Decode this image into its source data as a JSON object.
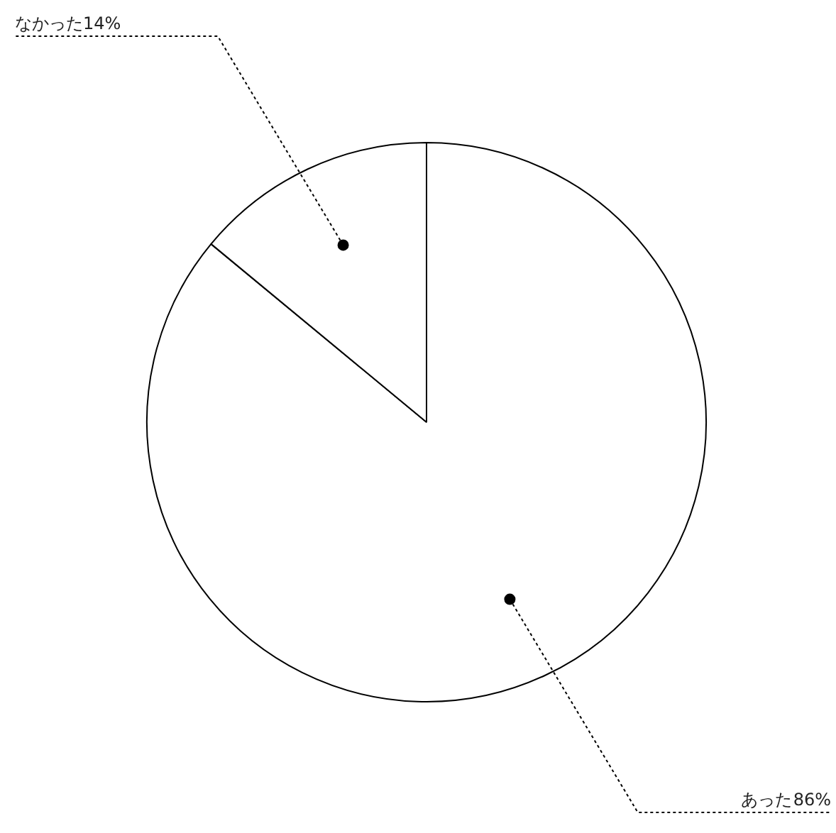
{
  "chart_data": {
    "type": "pie",
    "categories": [
      "あった",
      "なかった"
    ],
    "values": [
      86,
      14
    ],
    "colors": [
      "#ffffff",
      "#ffffff"
    ],
    "value_labels": [
      "86%",
      "14%"
    ]
  }
}
